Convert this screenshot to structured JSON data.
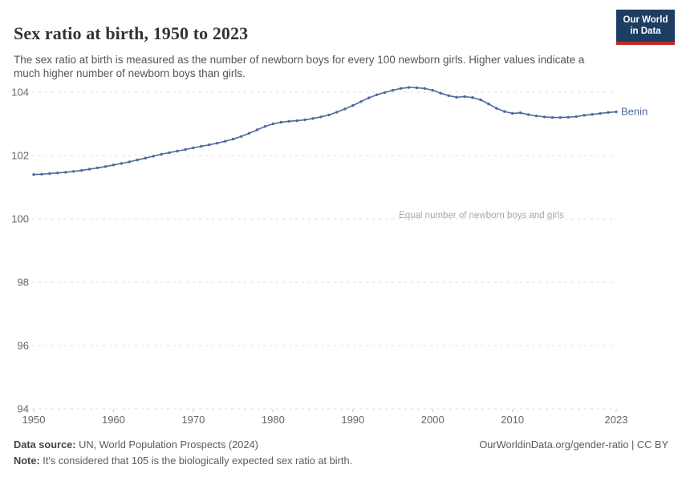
{
  "header": {
    "title": "Sex ratio at birth, 1950 to 2023",
    "subtitle": "The sex ratio at birth is measured as the number of newborn boys for every 100 newborn girls. Higher values indicate a much higher number of newborn boys than girls."
  },
  "logo": {
    "line1": "Our World",
    "line2": "in Data"
  },
  "chart_data": {
    "type": "line",
    "title": "Sex ratio at birth, 1950 to 2023",
    "xlabel": "",
    "ylabel": "",
    "xlim": [
      1950,
      2023
    ],
    "ylim": [
      94,
      104.55
    ],
    "x_ticks": [
      1950,
      1960,
      1970,
      1980,
      1990,
      2000,
      2010,
      2023
    ],
    "y_ticks": [
      94,
      96,
      98,
      100,
      102,
      104
    ],
    "grid": "horizontal-dashed",
    "legend_position": "end-of-line-label",
    "annotation": {
      "text": "Equal number of newborn boys and girls",
      "y_value": 100
    },
    "series": [
      {
        "name": "Benin",
        "color": "#4c6a9c",
        "x": [
          1950,
          1951,
          1952,
          1953,
          1954,
          1955,
          1956,
          1957,
          1958,
          1959,
          1960,
          1961,
          1962,
          1963,
          1964,
          1965,
          1966,
          1967,
          1968,
          1969,
          1970,
          1971,
          1972,
          1973,
          1974,
          1975,
          1976,
          1977,
          1978,
          1979,
          1980,
          1981,
          1982,
          1983,
          1984,
          1985,
          1986,
          1987,
          1988,
          1989,
          1990,
          1991,
          1992,
          1993,
          1994,
          1995,
          1996,
          1997,
          1998,
          1999,
          2000,
          2001,
          2002,
          2003,
          2004,
          2005,
          2006,
          2007,
          2008,
          2009,
          2010,
          2011,
          2012,
          2013,
          2014,
          2015,
          2016,
          2017,
          2018,
          2019,
          2020,
          2021,
          2022,
          2023
        ],
        "values": [
          101.4,
          101.41,
          101.43,
          101.45,
          101.47,
          101.5,
          101.53,
          101.57,
          101.61,
          101.65,
          101.7,
          101.75,
          101.8,
          101.86,
          101.92,
          101.98,
          102.04,
          102.09,
          102.14,
          102.19,
          102.24,
          102.29,
          102.34,
          102.39,
          102.45,
          102.52,
          102.6,
          102.7,
          102.81,
          102.92,
          103.0,
          103.05,
          103.08,
          103.1,
          103.13,
          103.17,
          103.22,
          103.28,
          103.37,
          103.47,
          103.58,
          103.7,
          103.82,
          103.92,
          103.99,
          104.06,
          104.12,
          104.15,
          104.14,
          104.12,
          104.06,
          103.97,
          103.89,
          103.84,
          103.86,
          103.83,
          103.76,
          103.63,
          103.49,
          103.39,
          103.33,
          103.35,
          103.29,
          103.25,
          103.22,
          103.2,
          103.2,
          103.21,
          103.23,
          103.27,
          103.3,
          103.33,
          103.36,
          103.38
        ]
      }
    ]
  },
  "colors": {
    "line": "#4c6a9c",
    "grid": "#dcdcdc",
    "tick": "#c8c8c8",
    "logo_bg": "#1d3d63",
    "logo_red": "#bf2b22"
  },
  "footer": {
    "datasource_label": "Data source:",
    "datasource_value": " UN, World Population Prospects (2024)",
    "link": "OurWorldinData.org/gender-ratio | CC BY",
    "note_label": "Note:",
    "note_value": " It's considered that 105 is the biologically expected sex ratio at birth."
  }
}
